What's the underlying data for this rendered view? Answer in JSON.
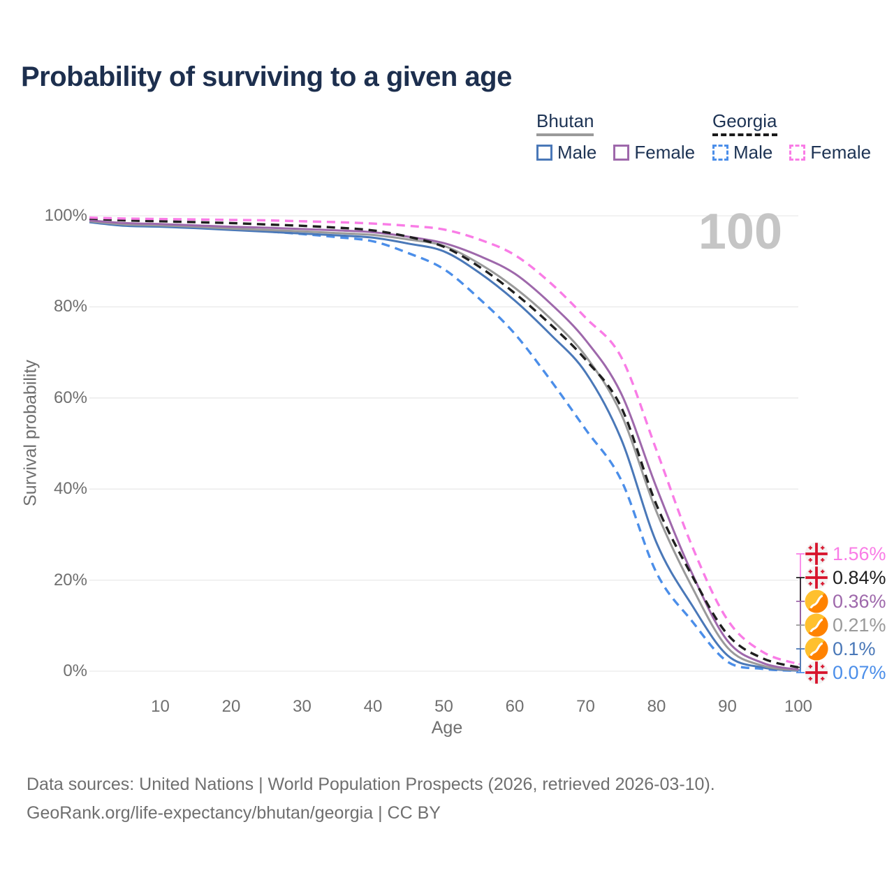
{
  "title": "Probability of surviving to a given age",
  "watermark": {
    "text": "100",
    "color": "#c5c5c5"
  },
  "legend": {
    "groups": [
      {
        "name": "Bhutan",
        "line_style": "solid",
        "underline_color": "#9a9a9a",
        "items": [
          {
            "label": "Male",
            "color": "#4a78b8"
          },
          {
            "label": "Female",
            "color": "#9e68ab"
          }
        ]
      },
      {
        "name": "Georgia",
        "line_style": "dashed",
        "underline_color": "#1a1a1a",
        "items": [
          {
            "label": "Male",
            "color": "#4b8ee9"
          },
          {
            "label": "Female",
            "color": "#f97ce6"
          }
        ]
      }
    ]
  },
  "chart_data": {
    "type": "line",
    "title": "Probability of surviving to a given age",
    "xlabel": "Age",
    "ylabel": "Survival probability",
    "xlim": [
      0,
      100
    ],
    "ylim": [
      0,
      100
    ],
    "grid": "horizontal",
    "legend_position": "top-right",
    "x_ticks": [
      {
        "value": 10,
        "label": "10"
      },
      {
        "value": 20,
        "label": "20"
      },
      {
        "value": 30,
        "label": "30"
      },
      {
        "value": 40,
        "label": "40"
      },
      {
        "value": 50,
        "label": "50"
      },
      {
        "value": 60,
        "label": "60"
      },
      {
        "value": 70,
        "label": "70"
      },
      {
        "value": 80,
        "label": "80"
      },
      {
        "value": 90,
        "label": "90"
      },
      {
        "value": 100,
        "label": "100"
      }
    ],
    "y_ticks": [
      {
        "value": 0,
        "label": "0%"
      },
      {
        "value": 20,
        "label": "20%"
      },
      {
        "value": 40,
        "label": "40%"
      },
      {
        "value": 60,
        "label": "60%"
      },
      {
        "value": 80,
        "label": "80%"
      },
      {
        "value": 100,
        "label": "100%"
      }
    ],
    "x": [
      0,
      5,
      10,
      15,
      20,
      25,
      30,
      35,
      40,
      45,
      50,
      55,
      60,
      65,
      70,
      75,
      80,
      85,
      90,
      95,
      100
    ],
    "series": [
      {
        "id": "georgia-female",
        "name": "Georgia Female",
        "country": "Georgia",
        "sex": "Female",
        "color": "#f97ce6",
        "dashed": true,
        "flag": "georgia",
        "end_label": "1.56%",
        "values": [
          99.6,
          99.4,
          99.3,
          99.2,
          99.1,
          99.0,
          98.8,
          98.6,
          98.3,
          97.8,
          97.0,
          94.8,
          91.4,
          85.3,
          77.6,
          69.0,
          48.5,
          27.5,
          11.3,
          4.2,
          1.56
        ]
      },
      {
        "id": "georgia-total",
        "name": "Georgia",
        "country": "Georgia",
        "sex": "Both",
        "color": "#1f1f1f",
        "dashed": true,
        "flag": "georgia",
        "end_label": "0.84%",
        "values": [
          99.4,
          99.0,
          98.8,
          98.6,
          98.4,
          98.1,
          97.8,
          97.4,
          96.8,
          95.4,
          93.2,
          88.8,
          83.0,
          76.2,
          68.4,
          58.0,
          36.5,
          21.0,
          8.1,
          2.8,
          0.84
        ]
      },
      {
        "id": "bhutan-female",
        "name": "Bhutan Female",
        "country": "Bhutan",
        "sex": "Female",
        "color": "#9e68ab",
        "dashed": false,
        "flag": "bhutan",
        "end_label": "0.36%",
        "values": [
          99.0,
          98.4,
          98.2,
          97.9,
          97.6,
          97.4,
          97.1,
          96.8,
          96.4,
          95.4,
          94.0,
          91.2,
          87.3,
          80.8,
          72.7,
          61.0,
          40.3,
          21.5,
          6.7,
          1.8,
          0.36
        ]
      },
      {
        "id": "bhutan-total",
        "name": "Bhutan",
        "country": "Bhutan",
        "sex": "Both",
        "color": "#9a9a9a",
        "dashed": false,
        "flag": "bhutan",
        "end_label": "0.21%",
        "values": [
          98.8,
          98.1,
          97.9,
          97.6,
          97.2,
          96.9,
          96.6,
          96.2,
          95.8,
          94.8,
          93.4,
          89.5,
          84.2,
          77.5,
          69.2,
          56.5,
          35.0,
          18.5,
          5.2,
          1.2,
          0.21
        ]
      },
      {
        "id": "bhutan-male",
        "name": "Bhutan Male",
        "country": "Bhutan",
        "sex": "Male",
        "color": "#4a78b8",
        "dashed": false,
        "flag": "bhutan",
        "end_label": "0.1%",
        "values": [
          98.6,
          97.8,
          97.6,
          97.3,
          96.9,
          96.5,
          96.1,
          95.7,
          95.2,
          93.9,
          92.2,
          87.5,
          81.4,
          74.0,
          65.6,
          51.0,
          28.2,
          14.5,
          3.5,
          0.8,
          0.1
        ]
      },
      {
        "id": "georgia-male",
        "name": "Georgia Male",
        "country": "Georgia",
        "sex": "Male",
        "color": "#4b8ee9",
        "dashed": true,
        "flag": "georgia",
        "end_label": "0.07%",
        "values": [
          98.7,
          98.3,
          98.0,
          97.6,
          97.1,
          96.6,
          96.0,
          95.3,
          94.4,
          91.8,
          88.3,
          81.8,
          74.1,
          64.0,
          53.1,
          42.0,
          21.6,
          11.0,
          2.1,
          0.5,
          0.07
        ]
      }
    ]
  },
  "footer": {
    "line1": "Data sources: United Nations | World Population Prospects (2026, retrieved 2026-03-10).",
    "line2": "GeoRank.org/life-expectancy/bhutan/georgia | CC BY"
  }
}
